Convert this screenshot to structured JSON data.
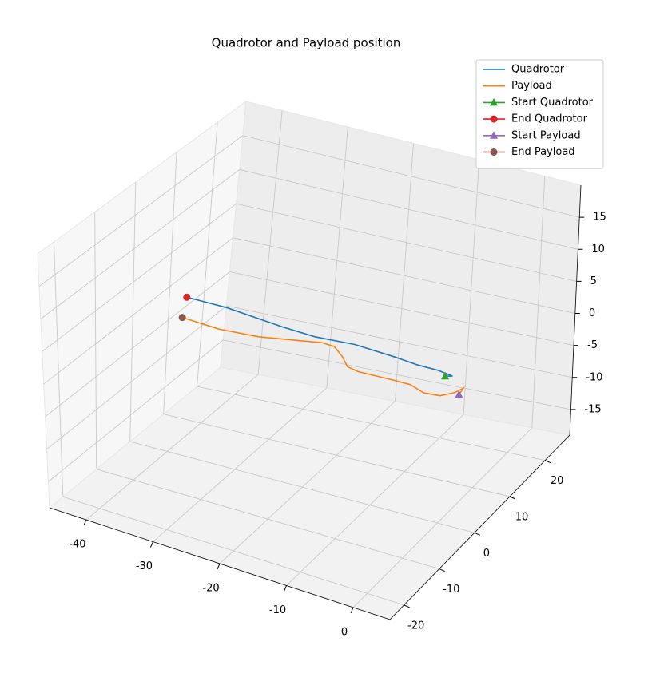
{
  "chart_data": {
    "type": "line3d",
    "title": "Quadrotor and Payload position",
    "xlim": [
      -45.5,
      5.5
    ],
    "ylim": [
      -24,
      27
    ],
    "zlim": [
      -19,
      20
    ],
    "xticks": [
      -40,
      -30,
      -20,
      -10,
      0
    ],
    "yticks": [
      -20,
      -10,
      0,
      10,
      20
    ],
    "zticks": [
      -15,
      -10,
      -5,
      0,
      5,
      10,
      15
    ],
    "grid": true,
    "legend": "upper right",
    "series": [
      {
        "name": "Quadrotor",
        "color": "#1f77b4",
        "marker": "none",
        "x": [
          0.7,
          1.8,
          -0.3,
          -3.3,
          -6.8,
          -12.7,
          -18.6,
          -23.4,
          -31.7,
          -37.6
        ],
        "y": [
          0,
          0,
          0,
          0,
          0,
          0,
          0,
          0,
          0,
          0
        ],
        "z": [
          3.1,
          3.4,
          3.7,
          3.7,
          4.0,
          4.3,
          3.9,
          4.1,
          4.8,
          4.8
        ]
      },
      {
        "name": "Payload",
        "color": "#ff7f0e",
        "marker": "none",
        "x": [
          2.8,
          3.4,
          2.1,
          0.0,
          -2.4,
          -4.4,
          -6.8,
          -12.1,
          -13.7,
          -14.5,
          -15.7,
          -17.5,
          -22.2,
          -26.9,
          -32.8,
          -38.2
        ],
        "y": [
          0,
          0,
          0,
          0,
          0,
          0,
          0,
          0,
          0,
          0,
          0,
          0,
          0,
          0,
          0,
          0
        ],
        "z": [
          0.9,
          2.0,
          1.0,
          0.0,
          -0.2,
          0.5,
          0.5,
          0.4,
          0.7,
          2.0,
          3.2,
          3.3,
          2.5,
          1.7,
          1.3,
          1.6
        ]
      },
      {
        "name": "Start Quadrotor",
        "color": "#2ca02c",
        "marker": "triangle",
        "x": [
          0.7
        ],
        "y": [
          0
        ],
        "z": [
          3.1
        ]
      },
      {
        "name": "End Quadrotor",
        "color": "#d62728",
        "marker": "circle",
        "x": [
          -37.6
        ],
        "y": [
          0
        ],
        "z": [
          4.8
        ]
      },
      {
        "name": "Start Payload",
        "color": "#9467bd",
        "marker": "triangle",
        "x": [
          2.8
        ],
        "y": [
          0
        ],
        "z": [
          0.9
        ]
      },
      {
        "name": "End Payload",
        "color": "#8c564b",
        "marker": "circle",
        "x": [
          -38.2
        ],
        "y": [
          0
        ],
        "z": [
          1.6
        ]
      }
    ]
  }
}
